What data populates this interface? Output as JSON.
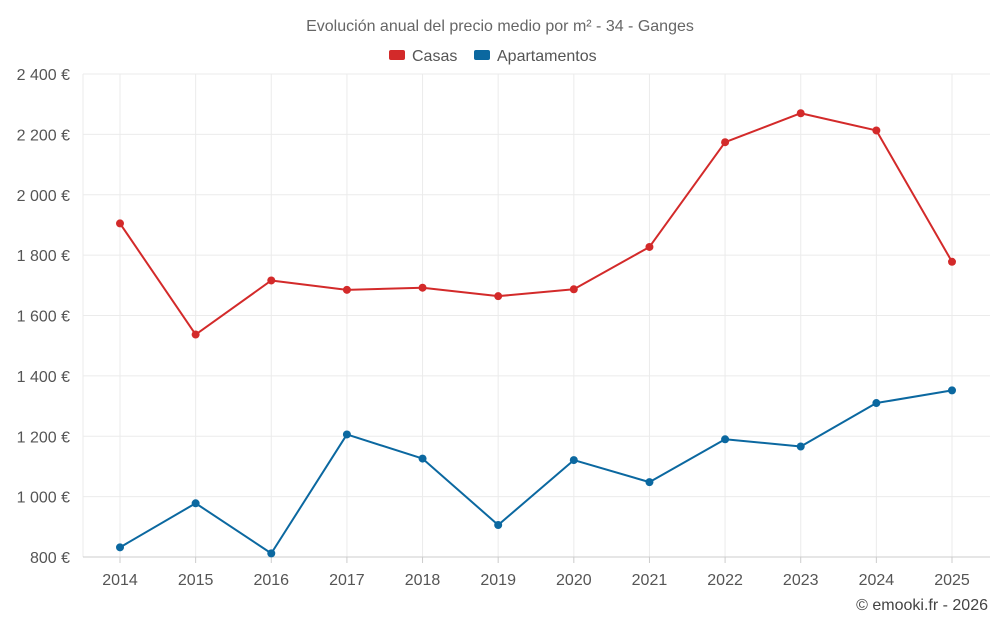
{
  "chart_data": {
    "type": "line",
    "title": "Evolución anual del precio medio por m² - 34 - Ganges",
    "categories": [
      "2014",
      "2015",
      "2016",
      "2017",
      "2018",
      "2019",
      "2020",
      "2021",
      "2022",
      "2023",
      "2024",
      "2025"
    ],
    "series": [
      {
        "name": "Casas",
        "color": "#d32a2a",
        "values": [
          1905,
          1537,
          1716,
          1685,
          1692,
          1664,
          1687,
          1827,
          2174,
          2270,
          2213,
          1778
        ]
      },
      {
        "name": "Apartamentos",
        "color": "#0b68a0",
        "values": [
          832,
          978,
          812,
          1206,
          1126,
          906,
          1121,
          1048,
          1190,
          1166,
          1310,
          1352
        ]
      }
    ],
    "ylim": [
      800,
      2400
    ],
    "yticks": [
      800,
      1000,
      1200,
      1400,
      1600,
      1800,
      2000,
      2200,
      2400
    ],
    "ytick_labels": [
      "800 €",
      "1 000 €",
      "1 200 €",
      "1 400 €",
      "1 600 €",
      "1 800 €",
      "2 000 €",
      "2 200 €",
      "2 400 €"
    ],
    "xlabel": "",
    "ylabel": "",
    "legend_position": "top-center",
    "grid": true,
    "credit": "© emooki.fr - 2026"
  }
}
